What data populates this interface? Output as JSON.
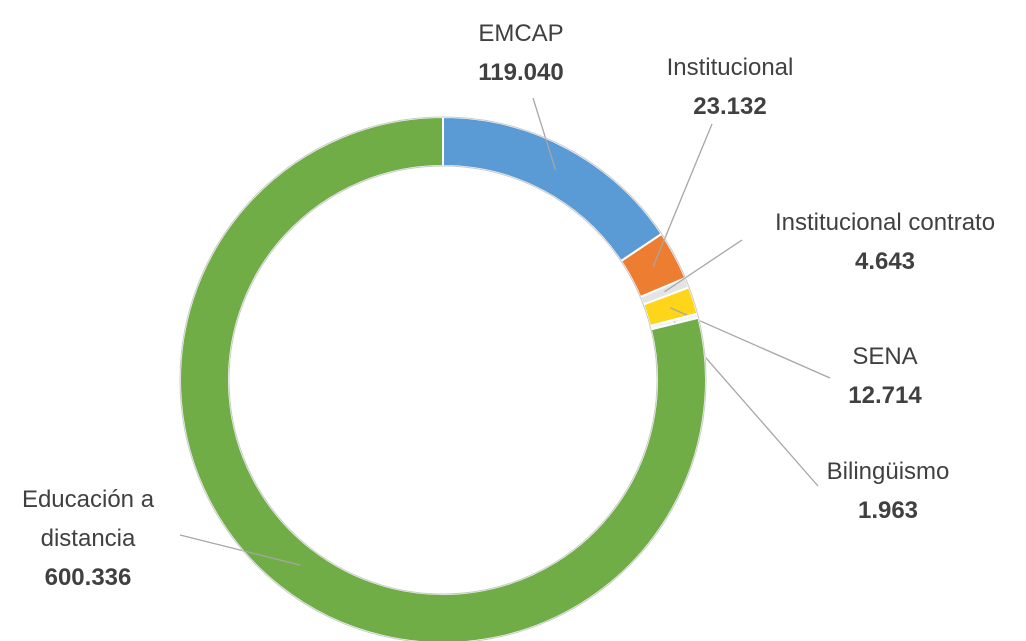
{
  "chart_data": {
    "type": "donut",
    "categories": [
      "EMCAP",
      "Institucional",
      "Institucional contrato",
      "SENA",
      "Bilingüismo",
      "Educación a distancia"
    ],
    "values": [
      119040,
      23132,
      4643,
      12714,
      1963,
      600336
    ],
    "value_labels": [
      "119.040",
      "23.132",
      "4.643",
      "12.714",
      "1.963",
      "600.336"
    ],
    "colors": [
      "#5b9bd5",
      "#ed7d31",
      "#e4e4e4",
      "#ffd51a",
      "#f2f2f2",
      "#70ad47"
    ]
  }
}
